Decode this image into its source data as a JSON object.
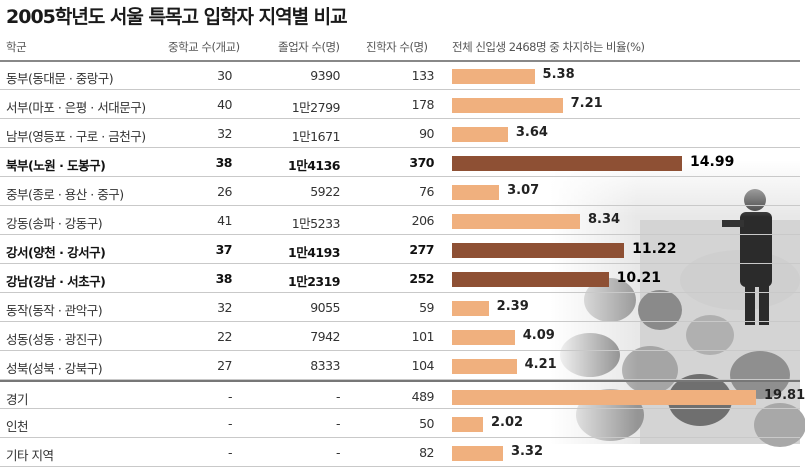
{
  "title": "2005학년도 서울 특목고 입학자 지역별 비교",
  "headers": {
    "region": "학군",
    "schools": "중학교 수(개교)",
    "grads": "졸업자 수(명)",
    "admitted": "진학자 수(명)",
    "ratio": "전체 신입생 2468명 중 차지하는 비율(%)"
  },
  "colors": {
    "bar": "#f0b07e",
    "bar_highlight": "#8e5034"
  },
  "chart_data": {
    "type": "bar",
    "orientation": "horizontal",
    "total_new_students": 2468,
    "rows": [
      {
        "region": "동부(동대문 · 중랑구)",
        "schools": "30",
        "grads": "9390",
        "admitted": "133",
        "ratio": 5.38,
        "ratio_label": "5.38",
        "highlight": false
      },
      {
        "region": "서부(마포 · 은평 · 서대문구)",
        "schools": "40",
        "grads": "1만2799",
        "admitted": "178",
        "ratio": 7.21,
        "ratio_label": "7.21",
        "highlight": false
      },
      {
        "region": "남부(영등포 · 구로 · 금천구)",
        "schools": "32",
        "grads": "1만1671",
        "admitted": "90",
        "ratio": 3.64,
        "ratio_label": "3.64",
        "highlight": false
      },
      {
        "region": "북부(노원 · 도봉구)",
        "schools": "38",
        "grads": "1만4136",
        "admitted": "370",
        "ratio": 14.99,
        "ratio_label": "14.99",
        "highlight": true
      },
      {
        "region": "중부(종로 · 용산 · 중구)",
        "schools": "26",
        "grads": "5922",
        "admitted": "76",
        "ratio": 3.07,
        "ratio_label": "3.07",
        "highlight": false
      },
      {
        "region": "강동(송파 · 강동구)",
        "schools": "41",
        "grads": "1만5233",
        "admitted": "206",
        "ratio": 8.34,
        "ratio_label": "8.34",
        "highlight": false
      },
      {
        "region": "강서(양천 · 강서구)",
        "schools": "37",
        "grads": "1만4193",
        "admitted": "277",
        "ratio": 11.22,
        "ratio_label": "11.22",
        "highlight": true
      },
      {
        "region": "강남(강남 · 서초구)",
        "schools": "38",
        "grads": "1만2319",
        "admitted": "252",
        "ratio": 10.21,
        "ratio_label": "10.21",
        "highlight": true
      },
      {
        "region": "동작(동작 · 관악구)",
        "schools": "32",
        "grads": "9055",
        "admitted": "59",
        "ratio": 2.39,
        "ratio_label": "2.39",
        "highlight": false
      },
      {
        "region": "성동(성동 · 광진구)",
        "schools": "22",
        "grads": "7942",
        "admitted": "101",
        "ratio": 4.09,
        "ratio_label": "4.09",
        "highlight": false
      },
      {
        "region": "성북(성북 · 강북구)",
        "schools": "27",
        "grads": "8333",
        "admitted": "104",
        "ratio": 4.21,
        "ratio_label": "4.21",
        "highlight": false
      },
      {
        "region": "경기",
        "schools": "-",
        "grads": "-",
        "admitted": "489",
        "ratio": 19.81,
        "ratio_label": "19.81",
        "highlight": false
      },
      {
        "region": "인천",
        "schools": "-",
        "grads": "-",
        "admitted": "50",
        "ratio": 2.02,
        "ratio_label": "2.02",
        "highlight": false
      },
      {
        "region": "기타 지역",
        "schools": "-",
        "grads": "-",
        "admitted": "82",
        "ratio": 3.32,
        "ratio_label": "3.32",
        "highlight": false
      }
    ],
    "ratio_max": 19.81
  }
}
